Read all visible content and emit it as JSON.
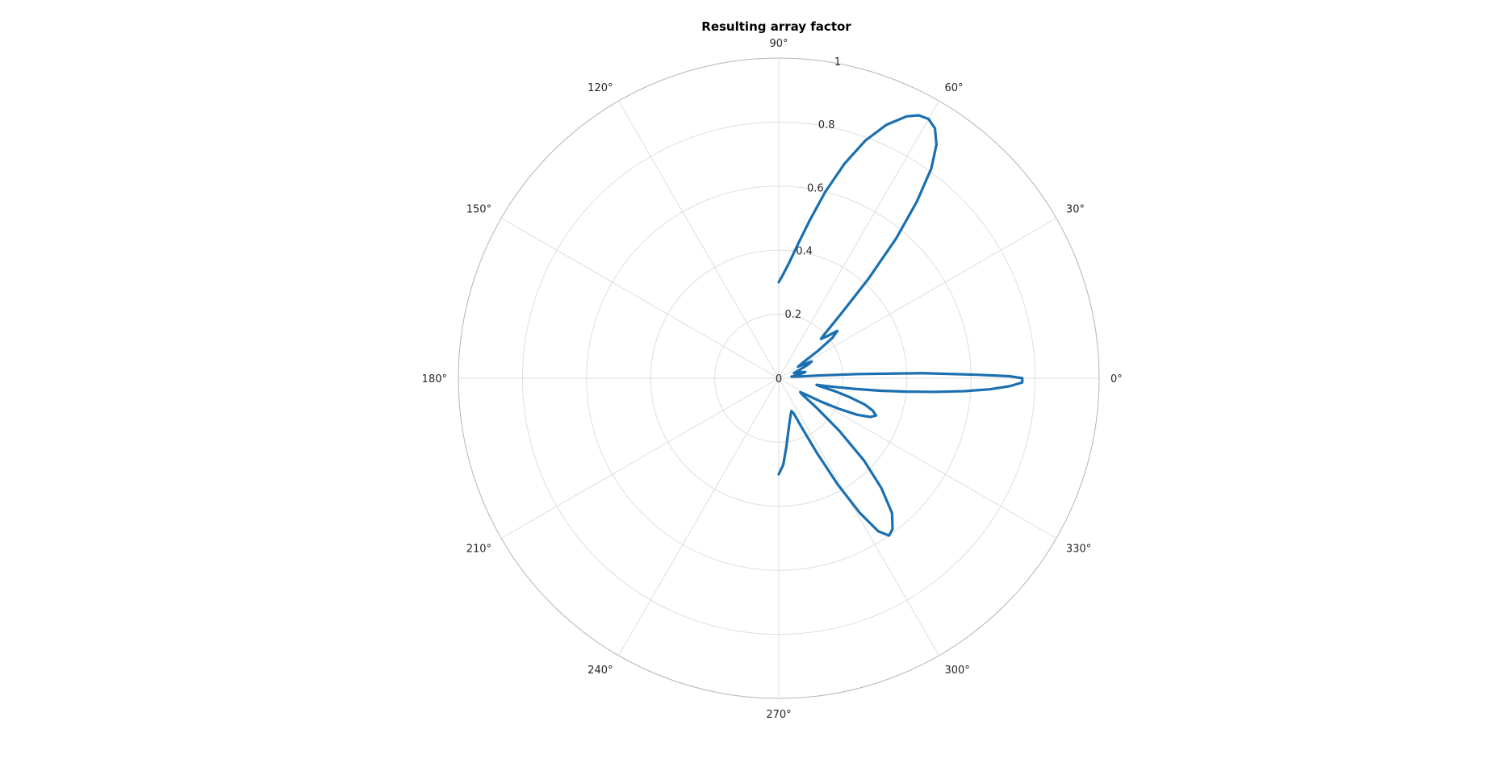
{
  "chart_data": {
    "type": "polar-line",
    "title": "Resulting array factor",
    "angle_unit": "deg",
    "theta_ticks": [
      "0°",
      "30°",
      "60°",
      "90°",
      "120°",
      "150°",
      "180°",
      "210°",
      "240°",
      "270°",
      "300°",
      "330°"
    ],
    "r_ticks": [
      "0",
      "0.2",
      "0.4",
      "0.6",
      "0.8",
      "1"
    ],
    "r_range": [
      0,
      1
    ],
    "grid": true,
    "series_color": "#1a6fb0",
    "series": [
      {
        "points": [
          [
            90,
            0.3
          ],
          [
            88,
            0.32
          ],
          [
            85,
            0.36
          ],
          [
            82,
            0.42
          ],
          [
            79,
            0.5
          ],
          [
            76,
            0.6
          ],
          [
            73,
            0.7
          ],
          [
            70,
            0.79
          ],
          [
            67,
            0.86
          ],
          [
            64,
            0.91
          ],
          [
            62,
            0.93
          ],
          [
            60,
            0.935
          ],
          [
            58,
            0.92
          ],
          [
            56,
            0.88
          ],
          [
            54,
            0.81
          ],
          [
            52,
            0.7
          ],
          [
            50,
            0.57
          ],
          [
            48,
            0.42
          ],
          [
            46,
            0.28
          ],
          [
            44,
            0.2
          ],
          [
            43,
            0.18
          ],
          [
            41,
            0.2
          ],
          [
            39,
            0.235
          ],
          [
            37,
            0.21
          ],
          [
            35,
            0.15
          ],
          [
            33,
            0.09
          ],
          [
            31,
            0.07
          ],
          [
            29,
            0.09
          ],
          [
            27,
            0.115
          ],
          [
            25,
            0.1
          ],
          [
            22,
            0.07
          ],
          [
            19,
            0.05
          ],
          [
            16,
            0.07
          ],
          [
            13,
            0.085
          ],
          [
            11,
            0.07
          ],
          [
            9,
            0.05
          ],
          [
            7,
            0.04
          ],
          [
            5,
            0.06
          ],
          [
            4,
            0.12
          ],
          [
            3,
            0.25
          ],
          [
            2,
            0.45
          ],
          [
            1,
            0.62
          ],
          [
            0.5,
            0.72
          ],
          [
            0,
            0.76
          ],
          [
            -1,
            0.76
          ],
          [
            -2,
            0.72
          ],
          [
            -3,
            0.66
          ],
          [
            -4,
            0.58
          ],
          [
            -5,
            0.49
          ],
          [
            -6,
            0.4
          ],
          [
            -7,
            0.32
          ],
          [
            -8,
            0.24
          ],
          [
            -9,
            0.17
          ],
          [
            -10,
            0.12
          ],
          [
            -11,
            0.13
          ],
          [
            -13,
            0.18
          ],
          [
            -15,
            0.23
          ],
          [
            -17,
            0.28
          ],
          [
            -19,
            0.31
          ],
          [
            -21,
            0.325
          ],
          [
            -23,
            0.31
          ],
          [
            -25,
            0.27
          ],
          [
            -27,
            0.21
          ],
          [
            -29,
            0.15
          ],
          [
            -31,
            0.1
          ],
          [
            -33,
            0.08
          ],
          [
            -35,
            0.09
          ],
          [
            -38,
            0.15
          ],
          [
            -41,
            0.25
          ],
          [
            -44,
            0.37
          ],
          [
            -47,
            0.47
          ],
          [
            -50,
            0.55
          ],
          [
            -53,
            0.59
          ],
          [
            -55,
            0.6
          ],
          [
            -57,
            0.57
          ],
          [
            -59,
            0.49
          ],
          [
            -61,
            0.38
          ],
          [
            -63,
            0.26
          ],
          [
            -65,
            0.17
          ],
          [
            -67,
            0.12
          ],
          [
            -69,
            0.11
          ],
          [
            -72,
            0.12
          ],
          [
            -76,
            0.14
          ],
          [
            -80,
            0.17
          ],
          [
            -84,
            0.22
          ],
          [
            -87,
            0.27
          ],
          [
            -90,
            0.3
          ]
        ]
      }
    ]
  }
}
